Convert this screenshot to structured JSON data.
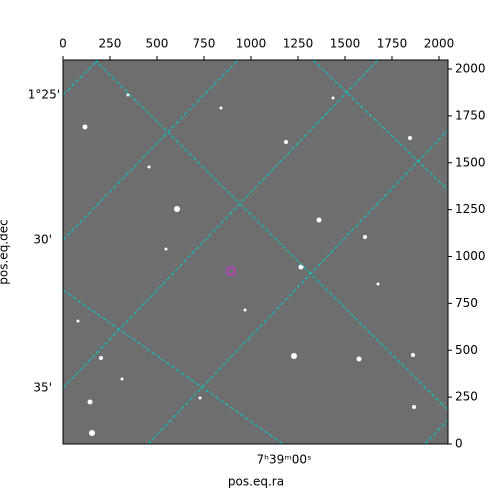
{
  "chart_data": {
    "type": "image",
    "xlabel": "pos.eq.ra",
    "ylabel": "pos.eq.dec",
    "xlim": [
      0,
      2048
    ],
    "ylim": [
      0,
      2048
    ],
    "xticks": [
      0,
      250,
      500,
      750,
      1000,
      1250,
      1500,
      1750,
      2000
    ],
    "yticks": [
      0,
      250,
      500,
      750,
      1000,
      1250,
      1500,
      1750,
      2000
    ],
    "dec_tick_labels": [
      "1°25'",
      "30'",
      "35'"
    ],
    "ra_tick_labels": [
      "7ʰ39ᵐ00ˢ"
    ],
    "grid_color": "#00cccc"
  }
}
